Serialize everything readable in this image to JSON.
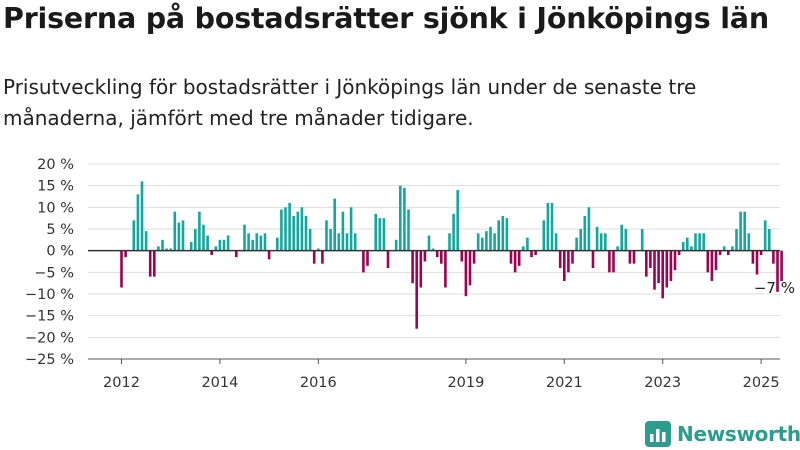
{
  "header": {
    "title": "Priserna på bostadsrätter sjönk i Jönköpings län",
    "subtitle": "Prisutveckling för bostadsrätter i Jönköpings län under de senaste tre månaderna, jämfört med tre månader tidigare."
  },
  "brand": {
    "name": "Newsworthy",
    "logo_icon": "bar-chart-logo-icon"
  },
  "colors": {
    "positive": "#13a89e",
    "negative": "#a3004f",
    "grid": "#dddddd",
    "zero_line": "#333333",
    "brand": "#2a9d8f"
  },
  "chart_data": {
    "type": "bar",
    "title": "Priserna på bostadsrätter sjönk i Jönköpings län",
    "subtitle": "Prisutveckling för bostadsrätter i Jönköpings län under de senaste tre månaderna, jämfört med tre månader tidigare.",
    "ylim": [
      -25,
      20
    ],
    "y_ticks": [
      20,
      15,
      10,
      5,
      0,
      -5,
      -10,
      -15,
      -20,
      -25
    ],
    "y_tick_labels": [
      "20 %",
      "15 %",
      "10 %",
      "5 %",
      "0 %",
      "−5 %",
      "−10 %",
      "−15 %",
      "−20 %",
      "−25 %"
    ],
    "x_tick_labels": [
      "2012",
      "2014",
      "2016",
      "2019",
      "2021",
      "2023",
      "2025"
    ],
    "x_tick_months": [
      "2012-01",
      "2014-01",
      "2016-01",
      "2019-01",
      "2021-01",
      "2023-01",
      "2025-01"
    ],
    "grid": true,
    "annotation": {
      "text": "−7 %",
      "month": "2025-04",
      "value": -7
    },
    "series": [
      {
        "start_month": "2012-01",
        "values": [
          -8.5,
          -1.5,
          0,
          7,
          13,
          16,
          4.5,
          -6,
          -6,
          1,
          2.5,
          0.5,
          0.5,
          9,
          6.5,
          7,
          0,
          2,
          5,
          9,
          6,
          3.5,
          -1,
          1,
          2.5,
          2.5,
          3.5,
          0,
          -1.5,
          0,
          6,
          4,
          2.5,
          4,
          3.5,
          4,
          -2,
          0,
          3,
          9.5,
          10,
          11,
          8,
          9,
          10,
          8,
          5,
          -3,
          0.5,
          -3,
          7,
          5,
          12,
          4,
          9,
          4,
          10,
          4,
          0,
          -5,
          -3.5,
          0,
          8.5,
          7.5,
          7.5,
          -4,
          0,
          2.5,
          15,
          14.5,
          9.5,
          -7.5,
          -18,
          -8.5,
          -2.5,
          3.5,
          0.5,
          -1.5,
          -3,
          -8.5,
          4,
          8.5,
          14,
          -2.5,
          -10.5,
          -8,
          -3,
          4,
          3,
          4.5,
          5.5,
          4,
          7,
          8,
          7.5,
          -3,
          -5,
          -3.5,
          1,
          3,
          -1.5,
          -1,
          0,
          7,
          11,
          11,
          4,
          -4,
          -7,
          -5,
          -3,
          3,
          5,
          8,
          10,
          -4,
          5.5,
          4,
          4,
          -5,
          -5,
          1,
          6,
          5,
          -3,
          -3,
          0,
          5,
          -6,
          -4,
          -9,
          -7.5,
          -11,
          -8.5,
          -7,
          -4.5,
          -1,
          2,
          3,
          1,
          4,
          4,
          4,
          -5,
          -7,
          -4.5,
          -1,
          1,
          -1,
          1,
          5,
          9,
          9,
          4,
          -3,
          -5.5,
          -1,
          7,
          5,
          -3,
          -9.5,
          -7
        ]
      }
    ]
  }
}
